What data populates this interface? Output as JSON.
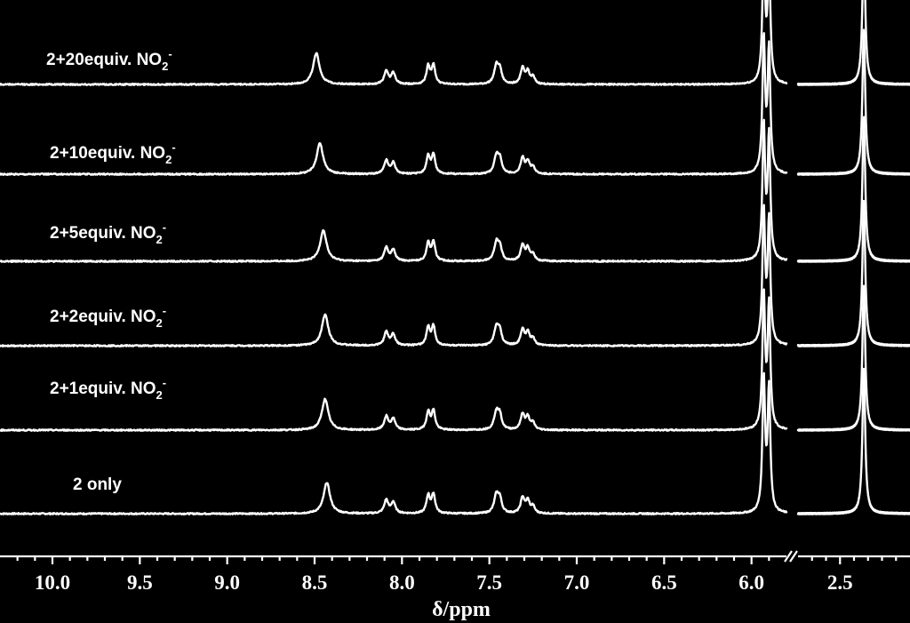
{
  "chart_data": {
    "type": "line",
    "title": "",
    "xlabel": "δ/ppm",
    "ylabel": "",
    "x_reversed": true,
    "x_break": {
      "from": 5.8,
      "to": 2.8
    },
    "x_segments": [
      {
        "range": [
          10.3,
          5.8
        ]
      },
      {
        "range": [
          2.8,
          2.0
        ]
      }
    ],
    "x_ticks": [
      {
        "value": 10.0,
        "label": "10.0"
      },
      {
        "value": 9.5,
        "label": "9.5"
      },
      {
        "value": 9.0,
        "label": "9.0"
      },
      {
        "value": 8.5,
        "label": "8.5"
      },
      {
        "value": 8.0,
        "label": "8.0"
      },
      {
        "value": 7.5,
        "label": "7.5"
      },
      {
        "value": 7.0,
        "label": "7.0"
      },
      {
        "value": 6.5,
        "label": "6.5"
      },
      {
        "value": 6.0,
        "label": "6.0"
      },
      {
        "value": 2.5,
        "label": "2.5"
      }
    ],
    "grid": false,
    "series": [
      {
        "label": {
          "main": "2 only",
          "suffix": "",
          "sub": "",
          "sup": ""
        },
        "shift_8_5": 8.43
      },
      {
        "label": {
          "main": "2+1equiv. NO",
          "suffix": "",
          "sub": "2",
          "sup": "-"
        },
        "shift_8_5": 8.44
      },
      {
        "label": {
          "main": "2+2equiv. NO",
          "suffix": "",
          "sub": "2",
          "sup": "-"
        },
        "shift_8_5": 8.44
      },
      {
        "label": {
          "main": "2+5equiv. NO",
          "suffix": "",
          "sub": "2",
          "sup": "-"
        },
        "shift_8_5": 8.45
      },
      {
        "label": {
          "main": "2+10equiv. NO",
          "suffix": "",
          "sub": "2",
          "sup": "-"
        },
        "shift_8_5": 8.47
      },
      {
        "label": {
          "main": "2+20equiv. NO",
          "suffix": "",
          "sub": "2",
          "sup": "-"
        },
        "shift_8_5": 8.49
      }
    ],
    "common_peaks": [
      {
        "ppm": 8.09,
        "height": 0.12,
        "width": 0.014
      },
      {
        "ppm": 8.05,
        "height": 0.1,
        "width": 0.014
      },
      {
        "ppm": 7.85,
        "height": 0.16,
        "width": 0.012
      },
      {
        "ppm": 7.82,
        "height": 0.17,
        "width": 0.012
      },
      {
        "ppm": 7.46,
        "height": 0.16,
        "width": 0.015
      },
      {
        "ppm": 7.44,
        "height": 0.12,
        "width": 0.013
      },
      {
        "ppm": 7.31,
        "height": 0.14,
        "width": 0.013
      },
      {
        "ppm": 7.28,
        "height": 0.11,
        "width": 0.013
      },
      {
        "ppm": 7.25,
        "height": 0.06,
        "width": 0.012
      },
      {
        "ppm": 5.93,
        "height": 1.2,
        "width": 0.009
      },
      {
        "ppm": 5.9,
        "height": 1.1,
        "width": 0.009
      },
      {
        "ppm": 2.33,
        "height": 1.3,
        "width": 0.012
      }
    ],
    "main_peak_height": 0.28
  }
}
